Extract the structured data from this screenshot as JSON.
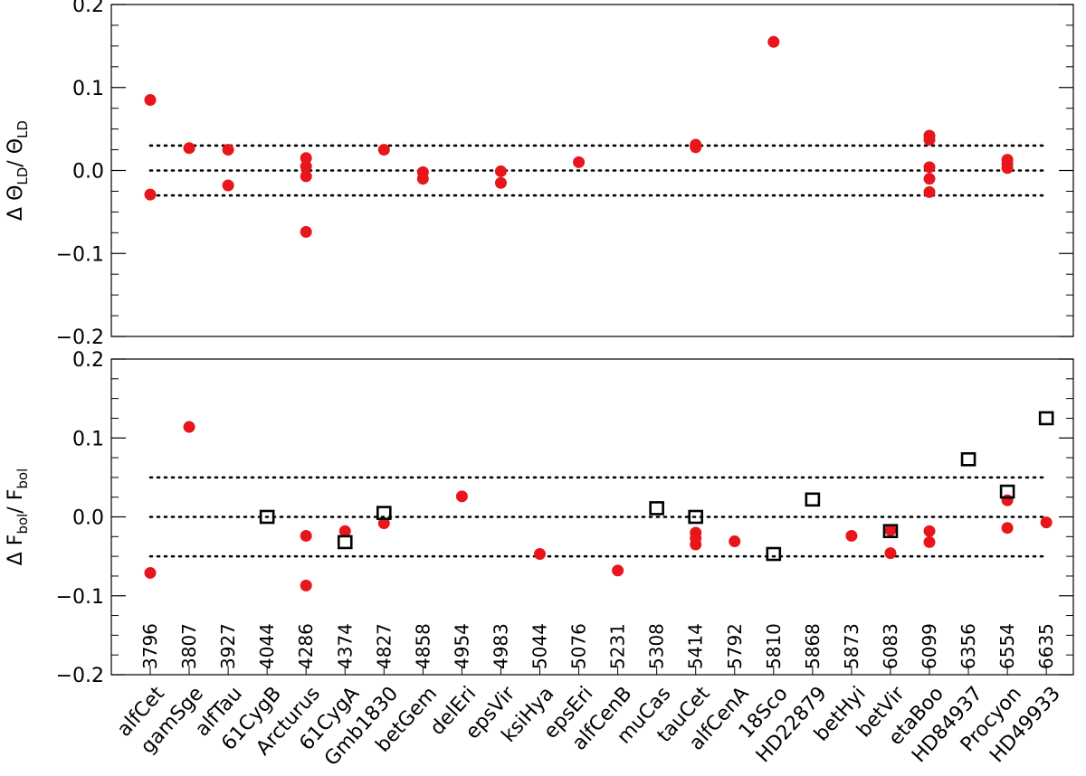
{
  "chart_data": [
    {
      "type": "scatter",
      "panel": "top",
      "ylabel": "Δ Θ_LD / Θ_LD",
      "ylabel_parts": {
        "prefix": "Δ Θ",
        "sub1": "LD",
        "mid": "/ Θ",
        "sub2": "LD"
      },
      "ylim": [
        -0.2,
        0.2
      ],
      "yticks": [
        -0.2,
        -0.1,
        0.0,
        0.1,
        0.2
      ],
      "ytick_labels": [
        "−0.2",
        "−0.1",
        "0.0",
        "0.1",
        "0.2"
      ],
      "reference_lines": [
        -0.03,
        0.0,
        0.03
      ],
      "series": [
        {
          "marker": "filled-circle",
          "color": "#e8151b",
          "points": [
            {
              "star": "alfCet",
              "y": 0.085
            },
            {
              "star": "alfCet",
              "y": -0.029
            },
            {
              "star": "gamSge",
              "y": 0.027
            },
            {
              "star": "alfTau",
              "y": 0.025
            },
            {
              "star": "alfTau",
              "y": -0.018
            },
            {
              "star": "Arcturus",
              "y": 0.015
            },
            {
              "star": "Arcturus",
              "y": 0.005
            },
            {
              "star": "Arcturus",
              "y": -0.007
            },
            {
              "star": "Arcturus",
              "y": -0.074
            },
            {
              "star": "Gmb1830",
              "y": 0.025
            },
            {
              "star": "betGem",
              "y": -0.002
            },
            {
              "star": "betGem",
              "y": -0.01
            },
            {
              "star": "epsVir",
              "y": -0.001
            },
            {
              "star": "epsVir",
              "y": -0.015
            },
            {
              "star": "epsEri",
              "y": 0.01
            },
            {
              "star": "tauCet",
              "y": 0.031
            },
            {
              "star": "tauCet",
              "y": 0.028
            },
            {
              "star": "18Sco",
              "y": 0.155
            },
            {
              "star": "etaBoo",
              "y": 0.042
            },
            {
              "star": "etaBoo",
              "y": 0.037
            },
            {
              "star": "etaBoo",
              "y": 0.004
            },
            {
              "star": "etaBoo",
              "y": -0.01
            },
            {
              "star": "etaBoo",
              "y": -0.026
            },
            {
              "star": "Procyon",
              "y": 0.013
            },
            {
              "star": "Procyon",
              "y": 0.008
            },
            {
              "star": "Procyon",
              "y": 0.003
            }
          ]
        }
      ]
    },
    {
      "type": "scatter",
      "panel": "bottom",
      "ylabel": "Δ F_bol / F_bol",
      "ylabel_parts": {
        "prefix": "Δ F",
        "sub1": "bol",
        "mid": "/ F",
        "sub2": "bol"
      },
      "ylim": [
        -0.2,
        0.2
      ],
      "yticks": [
        -0.2,
        -0.1,
        0.0,
        0.1,
        0.2
      ],
      "ytick_labels": [
        "−0.2",
        "−0.1",
        "0.0",
        "0.1",
        "0.2"
      ],
      "reference_lines": [
        -0.05,
        0.0,
        0.05
      ],
      "series": [
        {
          "marker": "filled-circle",
          "color": "#e8151b",
          "points": [
            {
              "star": "alfCet",
              "y": -0.071
            },
            {
              "star": "gamSge",
              "y": 0.114
            },
            {
              "star": "Arcturus",
              "y": -0.087
            },
            {
              "star": "Arcturus",
              "y": -0.024
            },
            {
              "star": "61CygA",
              "y": -0.018
            },
            {
              "star": "Gmb1830",
              "y": -0.008
            },
            {
              "star": "delEri",
              "y": 0.026
            },
            {
              "star": "ksiHya",
              "y": -0.047
            },
            {
              "star": "alfCenB",
              "y": -0.068
            },
            {
              "star": "tauCet",
              "y": -0.02
            },
            {
              "star": "tauCet",
              "y": -0.027
            },
            {
              "star": "tauCet",
              "y": -0.035
            },
            {
              "star": "alfCenA",
              "y": -0.031
            },
            {
              "star": "betHyi",
              "y": -0.024
            },
            {
              "star": "betVir",
              "y": -0.017
            },
            {
              "star": "betVir",
              "y": -0.046
            },
            {
              "star": "etaBoo",
              "y": -0.018
            },
            {
              "star": "etaBoo",
              "y": -0.032
            },
            {
              "star": "Procyon",
              "y": 0.021
            },
            {
              "star": "Procyon",
              "y": -0.014
            },
            {
              "star": "HD49933",
              "y": -0.007
            }
          ]
        },
        {
          "marker": "open-square",
          "color": "#000000",
          "points": [
            {
              "star": "61CygB",
              "y": 0.0
            },
            {
              "star": "61CygA",
              "y": -0.032
            },
            {
              "star": "Gmb1830",
              "y": 0.005
            },
            {
              "star": "muCas",
              "y": 0.011
            },
            {
              "star": "tauCet",
              "y": 0.0
            },
            {
              "star": "18Sco",
              "y": -0.047
            },
            {
              "star": "HD22879",
              "y": 0.022
            },
            {
              "star": "betVir",
              "y": -0.018
            },
            {
              "star": "HD84937",
              "y": 0.073
            },
            {
              "star": "Procyon",
              "y": 0.032
            },
            {
              "star": "HD49933",
              "y": 0.125
            }
          ]
        }
      ]
    }
  ],
  "stars": [
    {
      "name": "alfCet",
      "teff": "3796"
    },
    {
      "name": "gamSge",
      "teff": "3807"
    },
    {
      "name": "alfTau",
      "teff": "3927"
    },
    {
      "name": "61CygB",
      "teff": "4044"
    },
    {
      "name": "Arcturus",
      "teff": "4286"
    },
    {
      "name": "61CygA",
      "teff": "4374"
    },
    {
      "name": "Gmb1830",
      "teff": "4827"
    },
    {
      "name": "betGem",
      "teff": "4858"
    },
    {
      "name": "delEri",
      "teff": "4954"
    },
    {
      "name": "epsVir",
      "teff": "4983"
    },
    {
      "name": "ksiHya",
      "teff": "5044"
    },
    {
      "name": "epsEri",
      "teff": "5076"
    },
    {
      "name": "alfCenB",
      "teff": "5231"
    },
    {
      "name": "muCas",
      "teff": "5308"
    },
    {
      "name": "tauCet",
      "teff": "5414"
    },
    {
      "name": "alfCenA",
      "teff": "5792"
    },
    {
      "name": "18Sco",
      "teff": "5810"
    },
    {
      "name": "HD22879",
      "teff": "5868"
    },
    {
      "name": "betHyi",
      "teff": "5873"
    },
    {
      "name": "betVir",
      "teff": "6083"
    },
    {
      "name": "etaBoo",
      "teff": "6099"
    },
    {
      "name": "HD84937",
      "teff": "6356"
    },
    {
      "name": "Procyon",
      "teff": "6554"
    },
    {
      "name": "HD49933",
      "teff": "6635"
    }
  ]
}
